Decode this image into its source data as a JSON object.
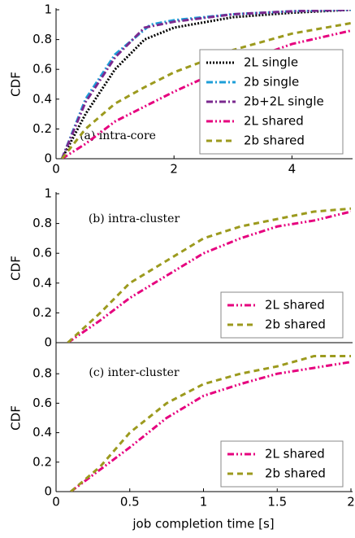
{
  "chart_data": [
    {
      "type": "line",
      "annotation": "(a) intra-core",
      "ylabel": "CDF",
      "xlim": [
        0,
        5
      ],
      "xticks": [
        0,
        2,
        4
      ],
      "ylim": [
        0,
        1
      ],
      "yticks": [
        0,
        0.2,
        0.4,
        0.6,
        0.8,
        1
      ],
      "legend": "lower right",
      "series": [
        {
          "name": "2L single",
          "color": "#000000",
          "dash": "2,2",
          "x": [
            0.1,
            0.5,
            1,
            1.5,
            2,
            3,
            4,
            5
          ],
          "values": [
            0,
            0.3,
            0.6,
            0.8,
            0.88,
            0.95,
            0.98,
            1
          ]
        },
        {
          "name": "2b single",
          "color": "#1e9fd8",
          "dash": "8,3,2,3",
          "x": [
            0.1,
            0.5,
            1,
            1.6,
            2,
            3,
            4,
            5
          ],
          "values": [
            0,
            0.4,
            0.7,
            0.9,
            0.93,
            0.97,
            0.99,
            1
          ]
        },
        {
          "name": "2b+2L single",
          "color": "#7b2a8f",
          "dash": "8,3,2,3",
          "x": [
            0.1,
            0.5,
            1,
            1.5,
            2,
            3,
            4,
            5
          ],
          "values": [
            0,
            0.38,
            0.68,
            0.88,
            0.92,
            0.97,
            0.99,
            1
          ]
        },
        {
          "name": "2L shared",
          "color": "#e6007e",
          "dash": "8,3,2,3,2,3",
          "x": [
            0.1,
            0.5,
            1,
            1.5,
            2,
            3,
            4,
            5
          ],
          "values": [
            0,
            0.1,
            0.25,
            0.35,
            0.45,
            0.63,
            0.77,
            0.86
          ]
        },
        {
          "name": "2b shared",
          "color": "#9c9a1e",
          "dash": "7,5",
          "x": [
            0.1,
            0.5,
            1,
            1.5,
            2,
            3,
            4,
            5
          ],
          "values": [
            0,
            0.2,
            0.37,
            0.48,
            0.58,
            0.73,
            0.84,
            0.91
          ]
        }
      ]
    },
    {
      "type": "line",
      "annotation": "(b) intra-cluster",
      "ylabel": "CDF",
      "xlim": [
        0,
        2
      ],
      "ylim": [
        0,
        1
      ],
      "yticks": [
        0,
        0.2,
        0.4,
        0.6,
        0.8,
        1
      ],
      "legend": "lower right",
      "series": [
        {
          "name": "2L shared",
          "color": "#e6007e",
          "dash": "8,3,2,3,2,3",
          "x": [
            0.08,
            0.3,
            0.5,
            0.75,
            1,
            1.25,
            1.5,
            1.75,
            2
          ],
          "values": [
            0,
            0.15,
            0.3,
            0.45,
            0.6,
            0.7,
            0.78,
            0.82,
            0.88
          ]
        },
        {
          "name": "2b shared",
          "color": "#9c9a1e",
          "dash": "7,5",
          "x": [
            0.08,
            0.3,
            0.5,
            0.75,
            1,
            1.25,
            1.5,
            1.75,
            2
          ],
          "values": [
            0,
            0.2,
            0.4,
            0.55,
            0.7,
            0.78,
            0.83,
            0.88,
            0.9
          ]
        }
      ]
    },
    {
      "type": "line",
      "annotation": "(c) inter-cluster",
      "ylabel": "CDF",
      "xlabel": "job completion time [s]",
      "xlim": [
        0,
        2
      ],
      "xticks": [
        0,
        0.5,
        1,
        1.5,
        2
      ],
      "ylim": [
        0,
        1
      ],
      "yticks": [
        0,
        0.2,
        0.4,
        0.6,
        0.8
      ],
      "legend": "lower right",
      "series": [
        {
          "name": "2L shared",
          "color": "#e6007e",
          "dash": "8,3,2,3,2,3",
          "x": [
            0.1,
            0.3,
            0.5,
            0.75,
            1,
            1.25,
            1.5,
            1.75,
            2
          ],
          "values": [
            0,
            0.15,
            0.3,
            0.5,
            0.65,
            0.73,
            0.8,
            0.84,
            0.88
          ]
        },
        {
          "name": "2b shared",
          "color": "#9c9a1e",
          "dash": "7,5",
          "x": [
            0.1,
            0.3,
            0.5,
            0.75,
            1,
            1.25,
            1.5,
            1.75,
            2
          ],
          "values": [
            0,
            0.17,
            0.4,
            0.6,
            0.73,
            0.8,
            0.85,
            0.92,
            0.92
          ]
        }
      ]
    }
  ]
}
